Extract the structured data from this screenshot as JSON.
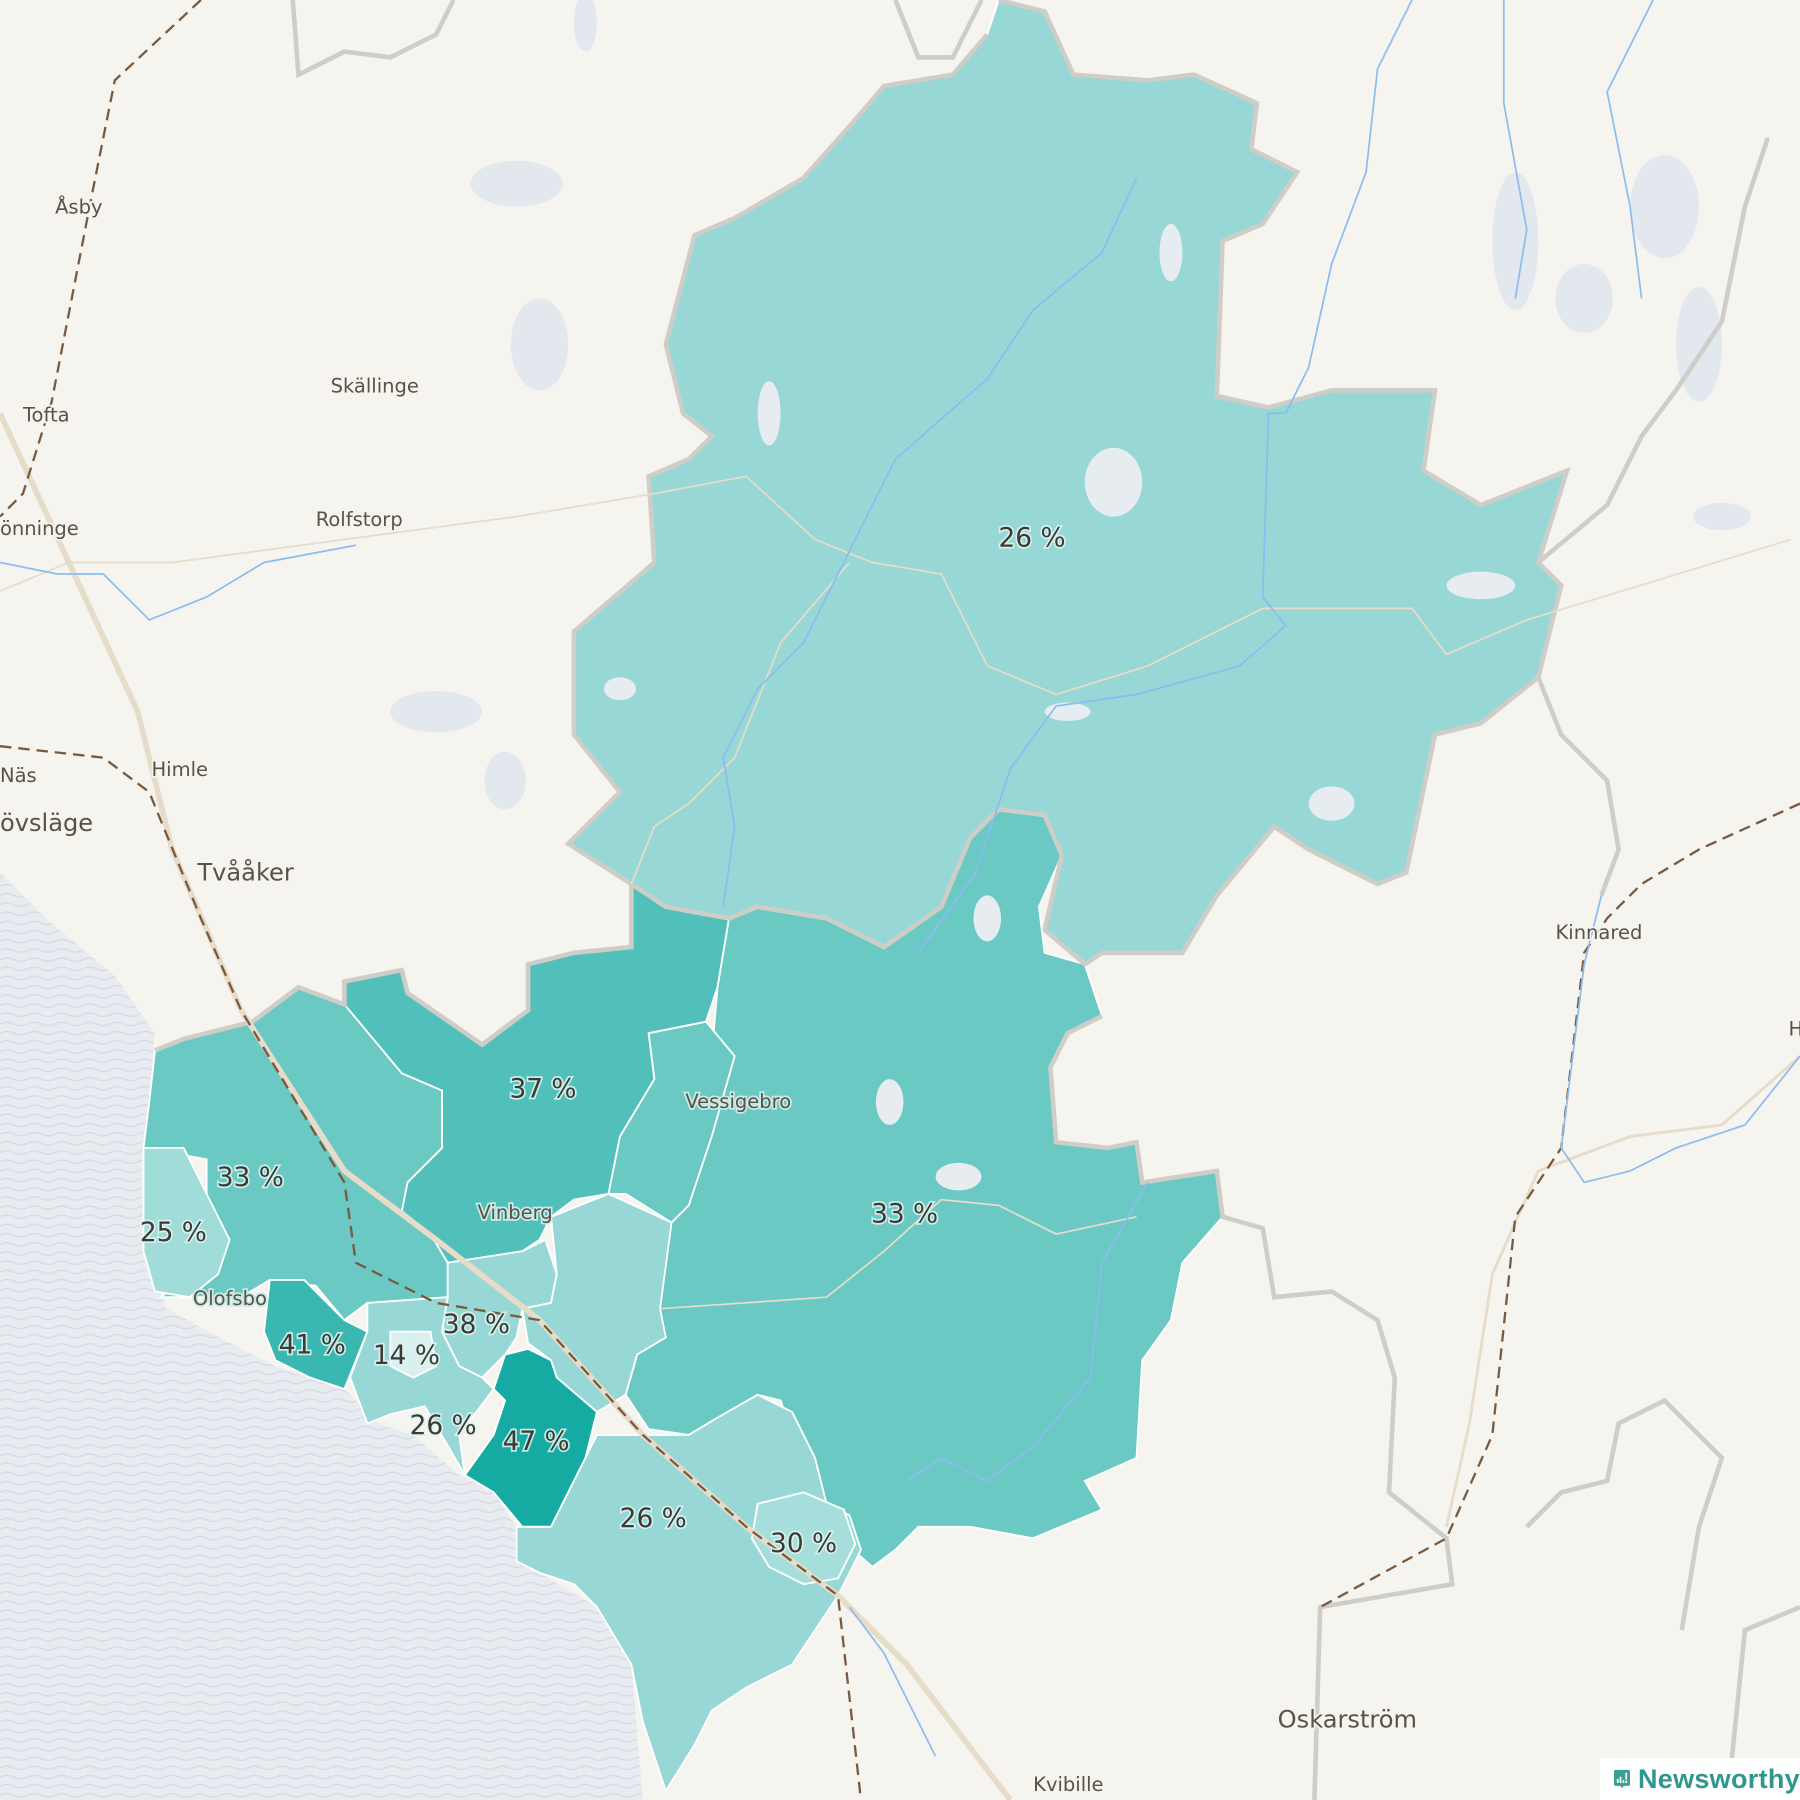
{
  "map": {
    "colors": {
      "land": "#f5f4ef",
      "water": "#e8ebf0",
      "border": "#cfcdc8",
      "road": "#e6dcc9",
      "rail": "#7a5a3e",
      "river": "#8cbcef",
      "scale_14": "#d9f0ee",
      "scale_25": "#a0dcd8",
      "scale_26": "#97d7d5",
      "scale_33": "#6bc9c4",
      "scale_37": "#52c0ba",
      "scale_41": "#3ab7b0",
      "scale_47": "#16aba2"
    },
    "regions": [
      {
        "id": "north",
        "value": 26,
        "label": "26 %"
      },
      {
        "id": "east",
        "value": 33,
        "label": "33 %"
      },
      {
        "id": "vessigebro",
        "value": 33,
        "label": ""
      },
      {
        "id": "center-north",
        "value": 37,
        "label": "37 %"
      },
      {
        "id": "west",
        "value": 33,
        "label": "33 %"
      },
      {
        "id": "coast",
        "value": 25,
        "label": "25 %"
      },
      {
        "id": "olofsbo",
        "value": 41,
        "label": "41 %"
      },
      {
        "id": "vinberg",
        "value": 38,
        "label": "38 %"
      },
      {
        "id": "center-light",
        "value": 26,
        "label": ""
      },
      {
        "id": "south-west",
        "value": 26,
        "label": "26 %"
      },
      {
        "id": "town",
        "value": 14,
        "label": "14 %"
      },
      {
        "id": "south-center",
        "value": 47,
        "label": "47 %"
      },
      {
        "id": "south",
        "value": 26,
        "label": "26 %"
      },
      {
        "id": "falkenberg",
        "value": 30,
        "label": "30 %"
      }
    ],
    "places": [
      "Åsby",
      "Tofta",
      "Skällinge",
      "Rolfstorp",
      "önninge",
      "Näs",
      "Himle",
      "övsläge",
      "Tvååker",
      "Kinnared",
      "Vessigebro",
      "Vinberg",
      "Olofsbo",
      "Oskarström",
      "Kvibille",
      "H"
    ]
  },
  "brand": {
    "name": "Newsworthy",
    "icon": "bar-chart-speech-bubble-icon"
  }
}
